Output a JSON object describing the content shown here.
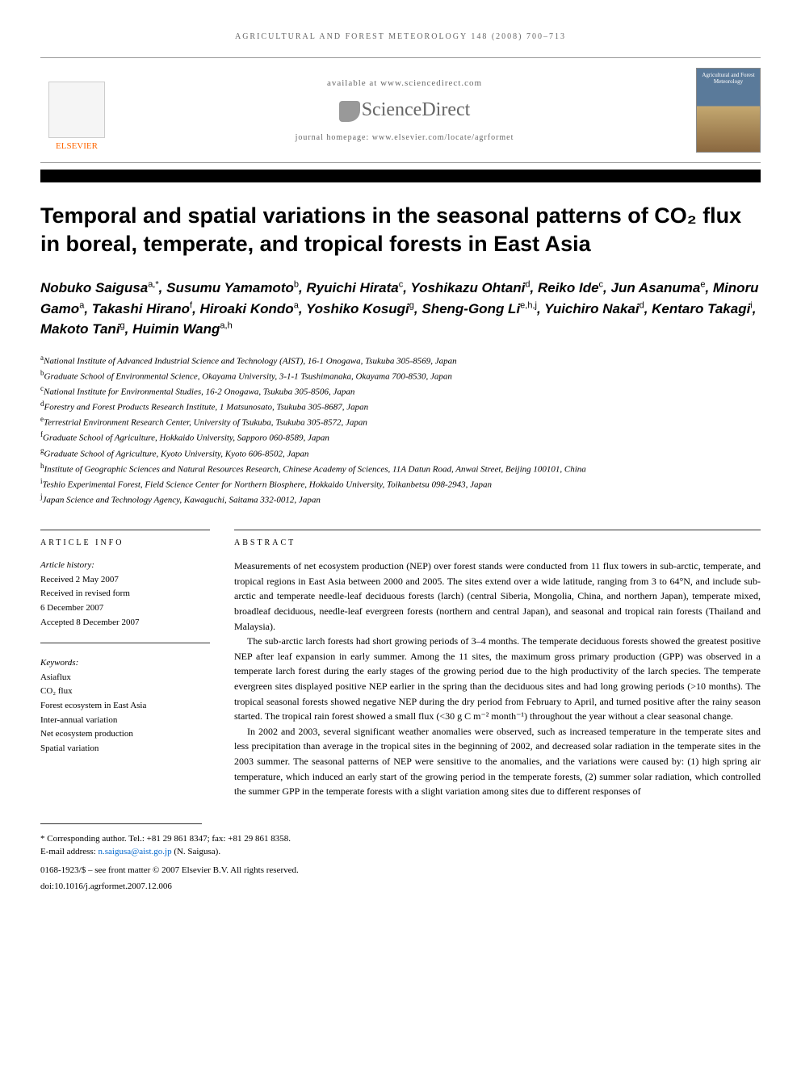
{
  "header": {
    "journal_header": "AGRICULTURAL AND FOREST METEOROLOGY 148 (2008) 700–713",
    "available_text": "available at www.sciencedirect.com",
    "sciencedirect_label": "ScienceDirect",
    "homepage_text": "journal homepage: www.elsevier.com/locate/agrformet",
    "elsevier_label": "ELSEVIER",
    "cover_title": "Agricultural and Forest Meteorology"
  },
  "title": "Temporal and spatial variations in the seasonal patterns of CO₂ flux in boreal, temperate, and tropical forests in East Asia",
  "authors_html": "Nobuko Saigusa<sup>a,*</sup>, Susumu Yamamoto<sup>b</sup>, Ryuichi Hirata<sup>c</sup>, Yoshikazu Ohtani<sup>d</sup>, Reiko Ide<sup>c</sup>, Jun Asanuma<sup>e</sup>, Minoru Gamo<sup>a</sup>, Takashi Hirano<sup>f</sup>, Hiroaki Kondo<sup>a</sup>, Yoshiko Kosugi<sup>g</sup>, Sheng-Gong Li<sup>e,h,j</sup>, Yuichiro Nakai<sup>d</sup>, Kentaro Takagi<sup>i</sup>, Makoto Tani<sup>g</sup>, Huimin Wang<sup>a,h</sup>",
  "affiliations": [
    {
      "sup": "a",
      "text": "National Institute of Advanced Industrial Science and Technology (AIST), 16-1 Onogawa, Tsukuba 305-8569, Japan"
    },
    {
      "sup": "b",
      "text": "Graduate School of Environmental Science, Okayama University, 3-1-1 Tsushimanaka, Okayama 700-8530, Japan"
    },
    {
      "sup": "c",
      "text": "National Institute for Environmental Studies, 16-2 Onogawa, Tsukuba 305-8506, Japan"
    },
    {
      "sup": "d",
      "text": "Forestry and Forest Products Research Institute, 1 Matsunosato, Tsukuba 305-8687, Japan"
    },
    {
      "sup": "e",
      "text": "Terrestrial Environment Research Center, University of Tsukuba, Tsukuba 305-8572, Japan"
    },
    {
      "sup": "f",
      "text": "Graduate School of Agriculture, Hokkaido University, Sapporo 060-8589, Japan"
    },
    {
      "sup": "g",
      "text": "Graduate School of Agriculture, Kyoto University, Kyoto 606-8502, Japan"
    },
    {
      "sup": "h",
      "text": "Institute of Geographic Sciences and Natural Resources Research, Chinese Academy of Sciences, 11A Datun Road, Anwai Street, Beijing 100101, China"
    },
    {
      "sup": "i",
      "text": "Teshio Experimental Forest, Field Science Center for Northern Biosphere, Hokkaido University, Toikanbetsu 098-2943, Japan"
    },
    {
      "sup": "j",
      "text": "Japan Science and Technology Agency, Kawaguchi, Saitama 332-0012, Japan"
    }
  ],
  "article_info": {
    "heading": "ARTICLE INFO",
    "history_label": "Article history:",
    "history_lines": [
      "Received 2 May 2007",
      "Received in revised form",
      "6 December 2007",
      "Accepted 8 December 2007"
    ],
    "keywords_label": "Keywords:",
    "keywords": [
      "Asiaflux",
      "CO₂ flux",
      "Forest ecosystem in East Asia",
      "Inter-annual variation",
      "Net ecosystem production",
      "Spatial variation"
    ]
  },
  "abstract": {
    "heading": "ABSTRACT",
    "paragraphs": [
      "Measurements of net ecosystem production (NEP) over forest stands were conducted from 11 flux towers in sub-arctic, temperate, and tropical regions in East Asia between 2000 and 2005. The sites extend over a wide latitude, ranging from 3 to 64°N, and include sub-arctic and temperate needle-leaf deciduous forests (larch) (central Siberia, Mongolia, China, and northern Japan), temperate mixed, broadleaf deciduous, needle-leaf evergreen forests (northern and central Japan), and seasonal and tropical rain forests (Thailand and Malaysia).",
      "The sub-arctic larch forests had short growing periods of 3–4 months. The temperate deciduous forests showed the greatest positive NEP after leaf expansion in early summer. Among the 11 sites, the maximum gross primary production (GPP) was observed in a temperate larch forest during the early stages of the growing period due to the high productivity of the larch species. The temperate evergreen sites displayed positive NEP earlier in the spring than the deciduous sites and had long growing periods (>10 months). The tropical seasonal forests showed negative NEP during the dry period from February to April, and turned positive after the rainy season started. The tropical rain forest showed a small flux (<30 g C m⁻² month⁻¹) throughout the year without a clear seasonal change.",
      "In 2002 and 2003, several significant weather anomalies were observed, such as increased temperature in the temperate sites and less precipitation than average in the tropical sites in the beginning of 2002, and decreased solar radiation in the temperate sites in the 2003 summer. The seasonal patterns of NEP were sensitive to the anomalies, and the variations were caused by: (1) high spring air temperature, which induced an early start of the growing period in the temperate forests, (2) summer solar radiation, which controlled the summer GPP in the temperate forests with a slight variation among sites due to different responses of"
    ]
  },
  "footer": {
    "corresponding": "* Corresponding author. Tel.: +81 29 861 8347; fax: +81 29 861 8358.",
    "email_label": "E-mail address: ",
    "email": "n.saigusa@aist.go.jp",
    "email_name": " (N. Saigusa).",
    "copyright": "0168-1923/$ – see front matter © 2007 Elsevier B.V. All rights reserved.",
    "doi": "doi:10.1016/j.agrformet.2007.12.006"
  },
  "colors": {
    "elsevier_orange": "#ff6600",
    "text_grey": "#666666",
    "link_blue": "#0066cc",
    "border_grey": "#999999",
    "black": "#000000"
  }
}
